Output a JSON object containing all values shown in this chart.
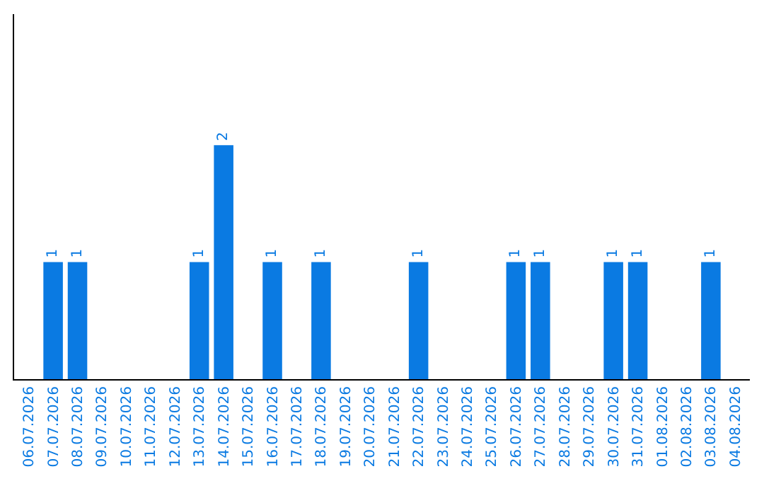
{
  "chart_data": {
    "type": "bar",
    "categories": [
      "06.07.2026",
      "07.07.2026",
      "08.07.2026",
      "09.07.2026",
      "10.07.2026",
      "11.07.2026",
      "12.07.2026",
      "13.07.2026",
      "14.07.2026",
      "15.07.2026",
      "16.07.2026",
      "17.07.2026",
      "18.07.2026",
      "19.07.2026",
      "20.07.2026",
      "21.07.2026",
      "22.07.2026",
      "23.07.2026",
      "24.07.2026",
      "25.07.2026",
      "26.07.2026",
      "27.07.2026",
      "28.07.2026",
      "29.07.2026",
      "30.07.2026",
      "31.07.2026",
      "01.08.2026",
      "02.08.2026",
      "03.08.2026",
      "04.08.2026"
    ],
    "values": [
      0,
      1,
      1,
      0,
      0,
      0,
      0,
      1,
      2,
      0,
      1,
      0,
      1,
      0,
      0,
      0,
      1,
      0,
      0,
      0,
      1,
      1,
      0,
      0,
      1,
      1,
      0,
      0,
      1,
      0
    ],
    "value_labels": [
      null,
      "1",
      "1",
      null,
      null,
      null,
      null,
      "1",
      "2",
      null,
      "1",
      null,
      "1",
      null,
      null,
      null,
      "1",
      null,
      null,
      null,
      "1",
      "1",
      null,
      null,
      "1",
      "1",
      null,
      null,
      "1",
      null
    ],
    "color": "#0a7ae2",
    "legend": false
  }
}
